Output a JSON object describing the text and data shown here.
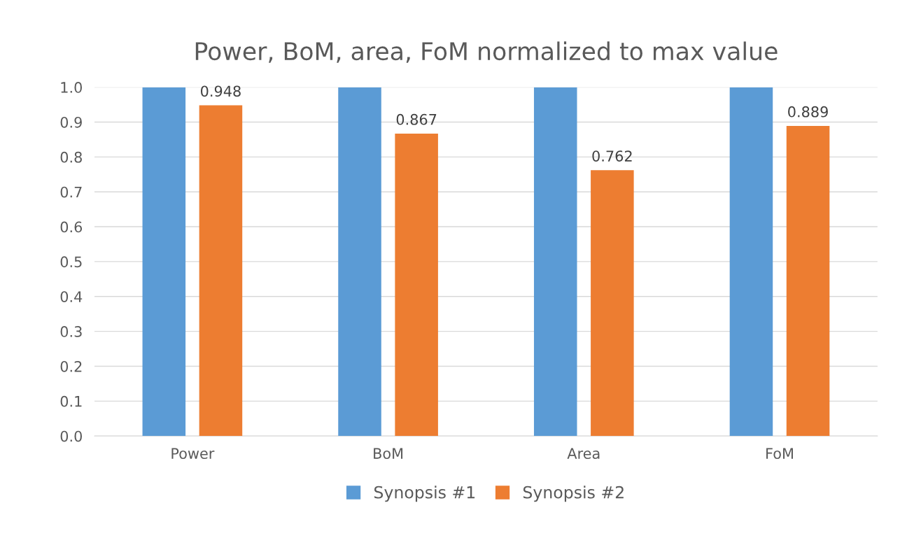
{
  "chart_data": {
    "type": "bar",
    "title": "Power, BoM, area, FoM normalized to max value",
    "categories": [
      "Power",
      "BoM",
      "Area",
      "FoM"
    ],
    "series": [
      {
        "name": "Synopsis #1",
        "color": "#5b9bd5",
        "values": [
          1.0,
          1.0,
          1.0,
          1.0
        ]
      },
      {
        "name": "Synopsis #2",
        "color": "#ed7d31",
        "values": [
          0.948,
          0.867,
          0.762,
          0.889
        ],
        "value_labels": [
          "0.948",
          "0.867",
          "0.762",
          "0.889"
        ]
      }
    ],
    "ylim": [
      0,
      1
    ],
    "yticks": [
      {
        "value": 0,
        "label": "0.0"
      },
      0.1,
      0.2,
      0.3,
      0.4,
      0.5,
      0.6,
      0.7,
      0.8,
      0.9,
      {
        "value": 1,
        "label": "1.0"
      }
    ],
    "grid": "y",
    "legend": "bottom"
  }
}
